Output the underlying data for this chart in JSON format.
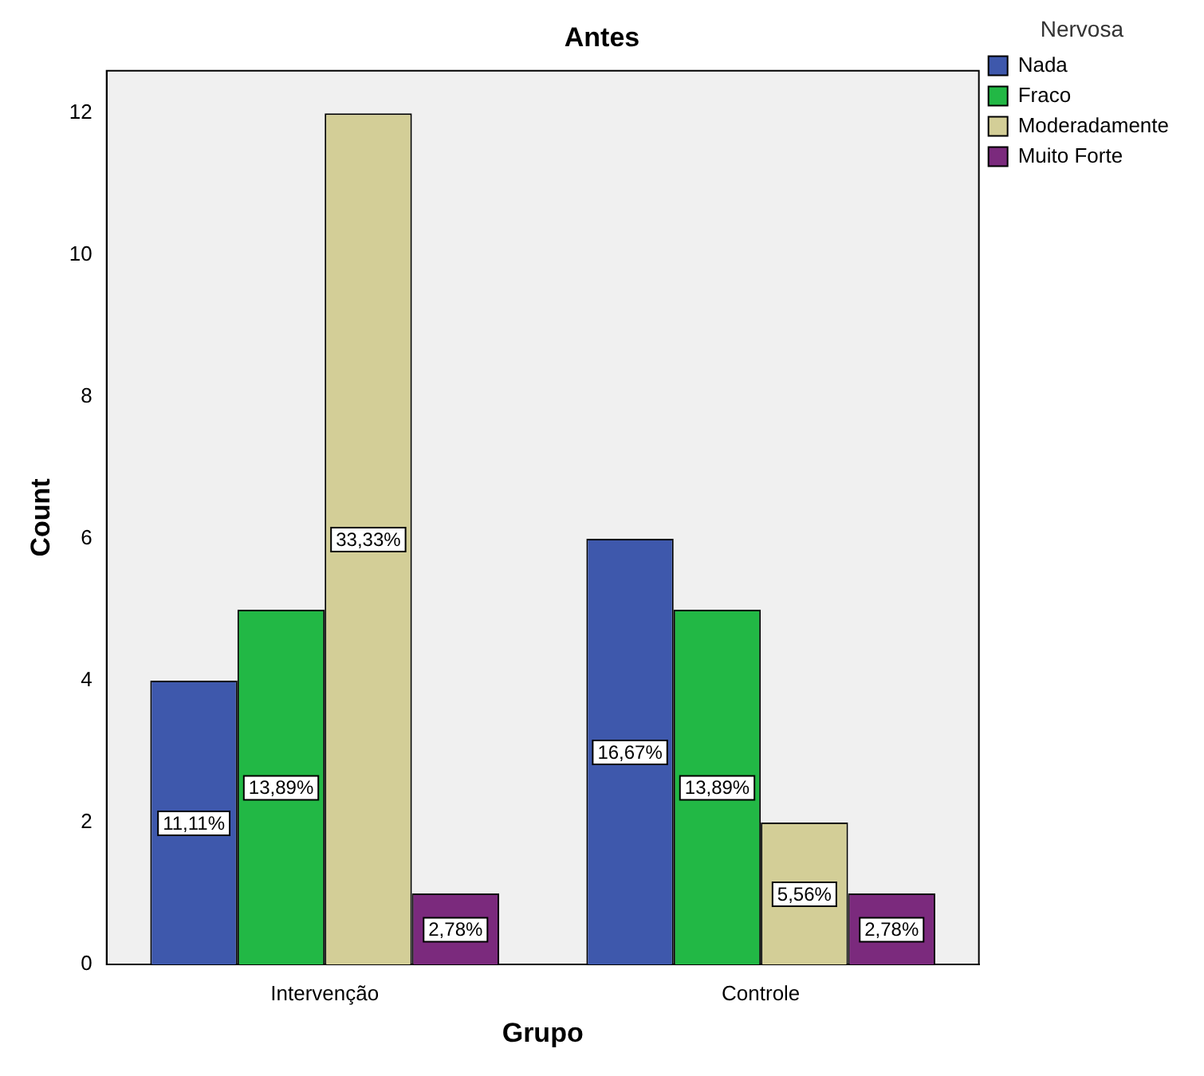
{
  "chart_data": {
    "type": "bar",
    "title": "Antes",
    "xlabel": "Grupo",
    "ylabel": "Count",
    "legend_title": "Nervosa",
    "categories": [
      "Intervenção",
      "Controle"
    ],
    "series": [
      {
        "name": "Nada",
        "color": "#3e58ac",
        "values": [
          4,
          6
        ]
      },
      {
        "name": "Fraco",
        "color": "#22b845",
        "values": [
          5,
          5
        ]
      },
      {
        "name": "Moderadamente",
        "color": "#d3ce97",
        "values": [
          12,
          2
        ]
      },
      {
        "name": "Muito Forte",
        "color": "#7b2a7d",
        "values": [
          1,
          1
        ]
      }
    ],
    "annotations": [
      "11,11%",
      "16,67%",
      "13,89%",
      "13,89%",
      "33,33%",
      "5,56%",
      "2,78%",
      "2,78%"
    ],
    "ylim": [
      0,
      12.6
    ],
    "yticks": [
      0,
      2,
      4,
      6,
      8,
      10,
      12
    ],
    "grid": false,
    "legend": "top right"
  }
}
